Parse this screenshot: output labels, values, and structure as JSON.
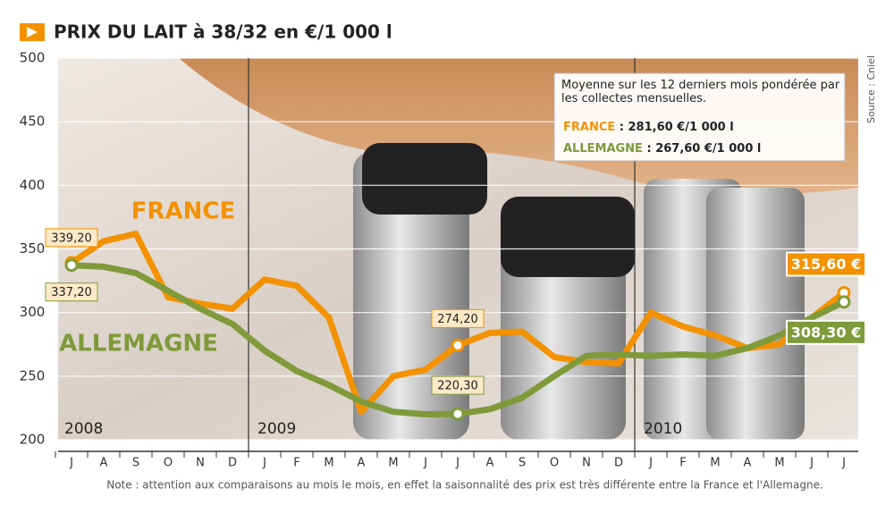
{
  "chart_data": {
    "type": "line",
    "title": "PRIX DU LAIT à 38/32 en €/1 000 l",
    "source": "Source : Cniel",
    "note": "Note : attention aux comparaisons au mois le mois, en effet la saisonnalité des prix est très différente entre la France et l'Allemagne.",
    "categories": [
      "J",
      "A",
      "S",
      "O",
      "N",
      "D",
      "J",
      "F",
      "M",
      "A",
      "M",
      "J",
      "J",
      "A",
      "S",
      "O",
      "N",
      "D",
      "J",
      "F",
      "M",
      "A",
      "M",
      "J",
      "J"
    ],
    "years": [
      "2008",
      "2009",
      "2010"
    ],
    "ylim": [
      200,
      500
    ],
    "yticks": [
      200,
      250,
      300,
      350,
      400,
      450,
      500
    ],
    "grid": true,
    "series": [
      {
        "name": "FRANCE",
        "color": "#f39200",
        "values": [
          339.2,
          356,
          362,
          312,
          307,
          303,
          326,
          321,
          296,
          222,
          250,
          255,
          274.2,
          284,
          285,
          265,
          261,
          260,
          300,
          289,
          282,
          272,
          275,
          296,
          315.6
        ],
        "value_labels": [
          "339,20",
          null,
          null,
          null,
          null,
          null,
          null,
          null,
          null,
          null,
          null,
          null,
          "274,20",
          null,
          null,
          null,
          null,
          null,
          null,
          null,
          null,
          null,
          null,
          null,
          "315,60 €"
        ]
      },
      {
        "name": "ALLEMAGNE",
        "color": "#7f9a3a",
        "values": [
          337.2,
          336,
          331,
          317,
          303,
          291,
          270,
          254,
          243,
          230,
          222,
          220,
          220.3,
          224,
          233,
          250,
          266,
          267,
          266,
          267,
          266,
          272,
          282,
          296,
          308.3
        ],
        "value_labels": [
          "337,20",
          null,
          null,
          null,
          null,
          null,
          null,
          null,
          null,
          null,
          null,
          null,
          "220,30",
          null,
          null,
          null,
          null,
          null,
          null,
          null,
          null,
          null,
          null,
          null,
          "308,30 €"
        ]
      }
    ],
    "annotation": {
      "intro": "Moyenne sur les 12 derniers mois pondérée par les collectes mensuelles.",
      "averages": [
        " : 281,60 €/1 000 l",
        " : 267,60 €/1 000 l"
      ]
    }
  }
}
